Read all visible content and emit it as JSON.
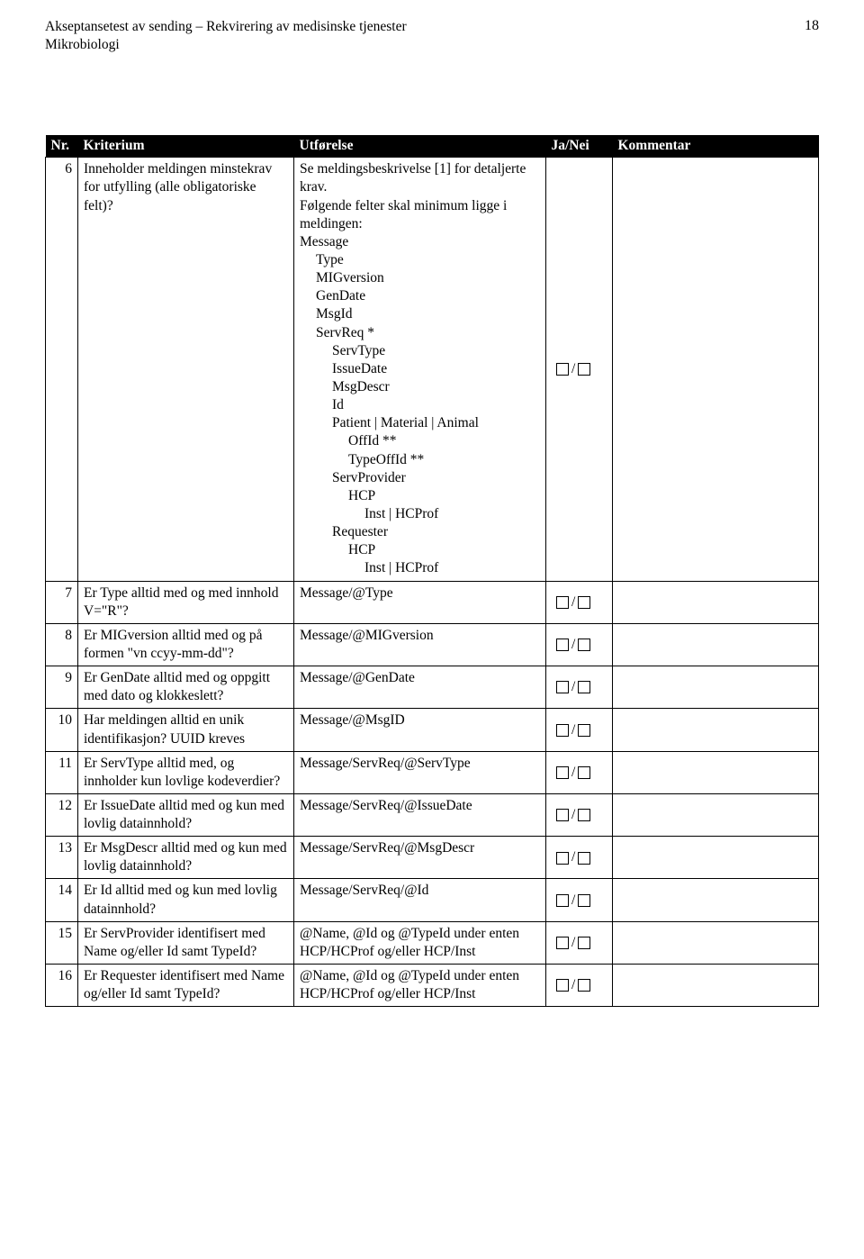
{
  "header": {
    "line1": "Akseptansetest av sending – Rekvirering av medisinske tjenester",
    "line2": "Mikrobiologi",
    "page_number": "18"
  },
  "table": {
    "headers": {
      "nr": "Nr.",
      "kriterium": "Kriterium",
      "utforelse": "Utførelse",
      "janei": "Ja/Nei",
      "kommentar": "Kommentar"
    },
    "rows": [
      {
        "nr": "6",
        "kriterium": "Inneholder meldingen minstekrav for utfylling (alle obligatoriske felt)?",
        "utforelse_intro1": "Se meldingsbeskrivelse [1] for detaljerte krav.",
        "utforelse_intro2": "Følgende felter skal minimum ligge i meldingen:",
        "utforelse_tree": [
          {
            "text": "Message",
            "indent": 0
          },
          {
            "text": "Type",
            "indent": 1
          },
          {
            "text": "MIGversion",
            "indent": 1
          },
          {
            "text": "GenDate",
            "indent": 1
          },
          {
            "text": "MsgId",
            "indent": 1
          },
          {
            "text": "ServReq *",
            "indent": 1
          },
          {
            "text": "ServType",
            "indent": 2
          },
          {
            "text": "IssueDate",
            "indent": 2
          },
          {
            "text": "MsgDescr",
            "indent": 2
          },
          {
            "text": "Id",
            "indent": 2
          },
          {
            "text": "Patient | Material | Animal",
            "indent": 2
          },
          {
            "text": "OffId **",
            "indent": 3
          },
          {
            "text": "TypeOffId **",
            "indent": 3
          },
          {
            "text": "ServProvider",
            "indent": 2
          },
          {
            "text": "HCP",
            "indent": 3
          },
          {
            "text": "Inst | HCProf",
            "indent": 3,
            "extra_indent": true
          },
          {
            "text": "Requester",
            "indent": 2
          },
          {
            "text": "HCP",
            "indent": 3
          },
          {
            "text": "Inst | HCProf",
            "indent": 3,
            "extra_indent": true
          }
        ]
      },
      {
        "nr": "7",
        "kriterium": "Er Type alltid med og med innhold V=\"R\"?",
        "utforelse": "Message/@Type"
      },
      {
        "nr": "8",
        "kriterium": "Er MIGversion alltid med og på formen \"vn ccyy-mm-dd\"?",
        "utforelse": "Message/@MIGversion"
      },
      {
        "nr": "9",
        "kriterium": "Er GenDate alltid med og oppgitt med dato og klokkeslett?",
        "utforelse": "Message/@GenDate"
      },
      {
        "nr": "10",
        "kriterium": "Har meldingen alltid en unik identifikasjon? UUID kreves",
        "utforelse": "Message/@MsgID"
      },
      {
        "nr": "11",
        "kriterium": "Er ServType alltid med, og innholder kun lovlige kodeverdier?",
        "utforelse": "Message/ServReq/@ServType"
      },
      {
        "nr": "12",
        "kriterium": "Er IssueDate alltid med og kun med lovlig datainnhold?",
        "utforelse": "Message/ServReq/@IssueDate"
      },
      {
        "nr": "13",
        "kriterium": "Er MsgDescr alltid med og kun med lovlig datainnhold?",
        "utforelse": "Message/ServReq/@MsgDescr"
      },
      {
        "nr": "14",
        "kriterium": "Er Id alltid med og kun med lovlig datainnhold?",
        "utforelse": "Message/ServReq/@Id"
      },
      {
        "nr": "15",
        "kriterium": "Er ServProvider identifisert med Name og/eller Id samt TypeId?",
        "utforelse": "@Name, @Id og @TypeId under enten HCP/HCProf og/eller HCP/Inst"
      },
      {
        "nr": "16",
        "kriterium": "Er Requester identifisert med Name og/eller Id samt TypeId?",
        "utforelse": "@Name, @Id og @TypeId under enten HCP/HCProf og/eller HCP/Inst"
      }
    ]
  }
}
